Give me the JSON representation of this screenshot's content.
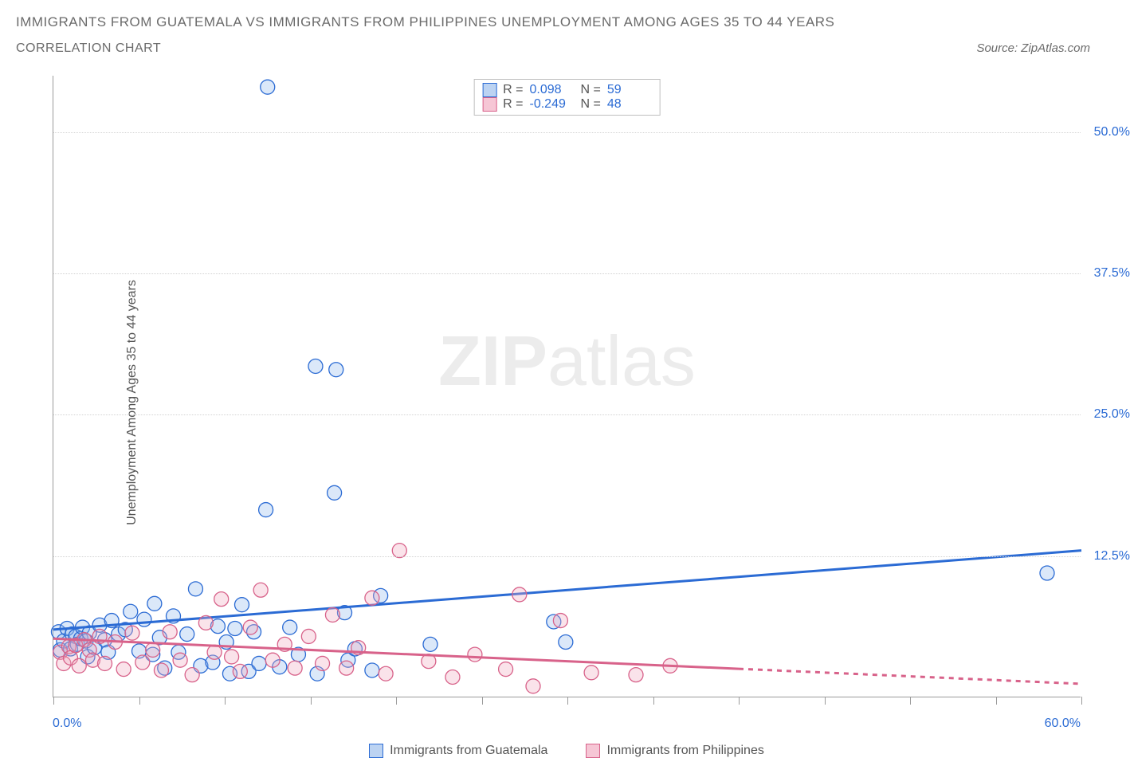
{
  "title_line1": "IMMIGRANTS FROM GUATEMALA VS IMMIGRANTS FROM PHILIPPINES UNEMPLOYMENT AMONG AGES 35 TO 44 YEARS",
  "subtitle": "CORRELATION CHART",
  "source": "Source: ZipAtlas.com",
  "ylabel": "Unemployment Among Ages 35 to 44 years",
  "watermark_bold": "ZIP",
  "watermark_rest": "atlas",
  "chart": {
    "type": "scatter",
    "xlim": [
      0,
      60
    ],
    "ylim": [
      0,
      55
    ],
    "xtick_positions": [
      0,
      5,
      10,
      15,
      20,
      25,
      30,
      35,
      40,
      45,
      50,
      55,
      60
    ],
    "xtick_labels": {
      "0": "0.0%",
      "60": "60.0%"
    },
    "ytick_positions": [
      12.5,
      25.0,
      37.5,
      50.0
    ],
    "ytick_labels": [
      "12.5%",
      "25.0%",
      "37.5%",
      "50.0%"
    ],
    "grid_color": "#d2d2d2",
    "axis_color": "#9a9a9a",
    "background": "#ffffff",
    "legend": {
      "r_label": "R =",
      "n_label": "N =",
      "rows": [
        {
          "swatch_fill": "#bcd3f2",
          "swatch_stroke": "#2b6bd4",
          "r": "0.098",
          "n": "59"
        },
        {
          "swatch_fill": "#f6c6d5",
          "swatch_stroke": "#d8628a",
          "r": "-0.249",
          "n": "48"
        }
      ]
    },
    "series_legend": [
      {
        "label": "Immigrants from Guatemala",
        "fill": "#bcd3f2",
        "stroke": "#2b6bd4"
      },
      {
        "label": "Immigrants from Philippines",
        "fill": "#f6c6d5",
        "stroke": "#d8628a"
      }
    ],
    "series": [
      {
        "name": "guatemala",
        "color_fill": "#8fb7ec",
        "color_stroke": "#2b6bd4",
        "marker_r": 9,
        "trend": {
          "x1": 0,
          "y1": 6.0,
          "x2": 60,
          "y2": 13.0,
          "solid_to_x": 60,
          "color": "#2b6bd4"
        },
        "points": [
          [
            0.3,
            5.8
          ],
          [
            0.4,
            4.2
          ],
          [
            0.6,
            5.0
          ],
          [
            0.8,
            6.1
          ],
          [
            1.0,
            4.3
          ],
          [
            1.1,
            5.6
          ],
          [
            1.3,
            5.4
          ],
          [
            1.4,
            4.7
          ],
          [
            1.6,
            5.2
          ],
          [
            1.7,
            6.2
          ],
          [
            1.9,
            5.0
          ],
          [
            2.0,
            3.6
          ],
          [
            2.1,
            5.7
          ],
          [
            2.4,
            4.4
          ],
          [
            2.7,
            6.4
          ],
          [
            3.0,
            5.1
          ],
          [
            3.2,
            4.0
          ],
          [
            3.4,
            6.8
          ],
          [
            3.8,
            5.6
          ],
          [
            4.2,
            6.0
          ],
          [
            4.5,
            7.6
          ],
          [
            5.0,
            4.1
          ],
          [
            5.3,
            6.9
          ],
          [
            5.8,
            3.8
          ],
          [
            5.9,
            8.3
          ],
          [
            6.2,
            5.3
          ],
          [
            6.5,
            2.6
          ],
          [
            7.0,
            7.2
          ],
          [
            7.3,
            4.0
          ],
          [
            7.8,
            5.6
          ],
          [
            8.3,
            9.6
          ],
          [
            8.6,
            2.8
          ],
          [
            9.3,
            3.1
          ],
          [
            9.6,
            6.3
          ],
          [
            10.1,
            4.9
          ],
          [
            10.3,
            2.1
          ],
          [
            10.6,
            6.1
          ],
          [
            11.0,
            8.2
          ],
          [
            11.4,
            2.3
          ],
          [
            11.7,
            5.8
          ],
          [
            12.0,
            3.0
          ],
          [
            12.4,
            16.6
          ],
          [
            12.5,
            54.0
          ],
          [
            13.2,
            2.7
          ],
          [
            13.8,
            6.2
          ],
          [
            14.3,
            3.8
          ],
          [
            15.3,
            29.3
          ],
          [
            15.4,
            2.1
          ],
          [
            16.4,
            18.1
          ],
          [
            16.5,
            29.0
          ],
          [
            17.0,
            7.5
          ],
          [
            17.2,
            3.3
          ],
          [
            17.6,
            4.3
          ],
          [
            18.6,
            2.4
          ],
          [
            19.1,
            9.0
          ],
          [
            22.0,
            4.7
          ],
          [
            29.2,
            6.7
          ],
          [
            29.9,
            4.9
          ],
          [
            58.0,
            11.0
          ]
        ]
      },
      {
        "name": "philippines",
        "color_fill": "#f1a8bf",
        "color_stroke": "#d8628a",
        "marker_r": 9,
        "trend": {
          "x1": 0,
          "y1": 5.2,
          "x2": 60,
          "y2": 1.2,
          "solid_to_x": 40,
          "color": "#d8628a"
        },
        "points": [
          [
            0.4,
            4.0
          ],
          [
            0.6,
            3.0
          ],
          [
            0.9,
            4.5
          ],
          [
            1.0,
            3.5
          ],
          [
            1.3,
            4.6
          ],
          [
            1.5,
            2.8
          ],
          [
            1.8,
            5.1
          ],
          [
            2.1,
            4.2
          ],
          [
            2.3,
            3.3
          ],
          [
            2.7,
            5.4
          ],
          [
            3.0,
            3.0
          ],
          [
            3.6,
            4.9
          ],
          [
            4.1,
            2.5
          ],
          [
            4.6,
            5.7
          ],
          [
            5.2,
            3.1
          ],
          [
            5.8,
            4.2
          ],
          [
            6.3,
            2.4
          ],
          [
            6.8,
            5.8
          ],
          [
            7.4,
            3.3
          ],
          [
            8.1,
            2.0
          ],
          [
            8.9,
            6.6
          ],
          [
            9.4,
            4.0
          ],
          [
            9.8,
            8.7
          ],
          [
            10.4,
            3.6
          ],
          [
            10.9,
            2.3
          ],
          [
            11.5,
            6.2
          ],
          [
            12.1,
            9.5
          ],
          [
            12.8,
            3.3
          ],
          [
            13.5,
            4.7
          ],
          [
            14.1,
            2.6
          ],
          [
            14.9,
            5.4
          ],
          [
            15.7,
            3.0
          ],
          [
            16.3,
            7.3
          ],
          [
            17.1,
            2.6
          ],
          [
            17.8,
            4.4
          ],
          [
            18.6,
            8.8
          ],
          [
            19.4,
            2.1
          ],
          [
            20.2,
            13.0
          ],
          [
            21.9,
            3.2
          ],
          [
            23.3,
            1.8
          ],
          [
            24.6,
            3.8
          ],
          [
            26.4,
            2.5
          ],
          [
            27.2,
            9.1
          ],
          [
            28.0,
            1.0
          ],
          [
            29.6,
            6.8
          ],
          [
            31.4,
            2.2
          ],
          [
            34.0,
            2.0
          ],
          [
            36.0,
            2.8
          ]
        ]
      }
    ]
  }
}
